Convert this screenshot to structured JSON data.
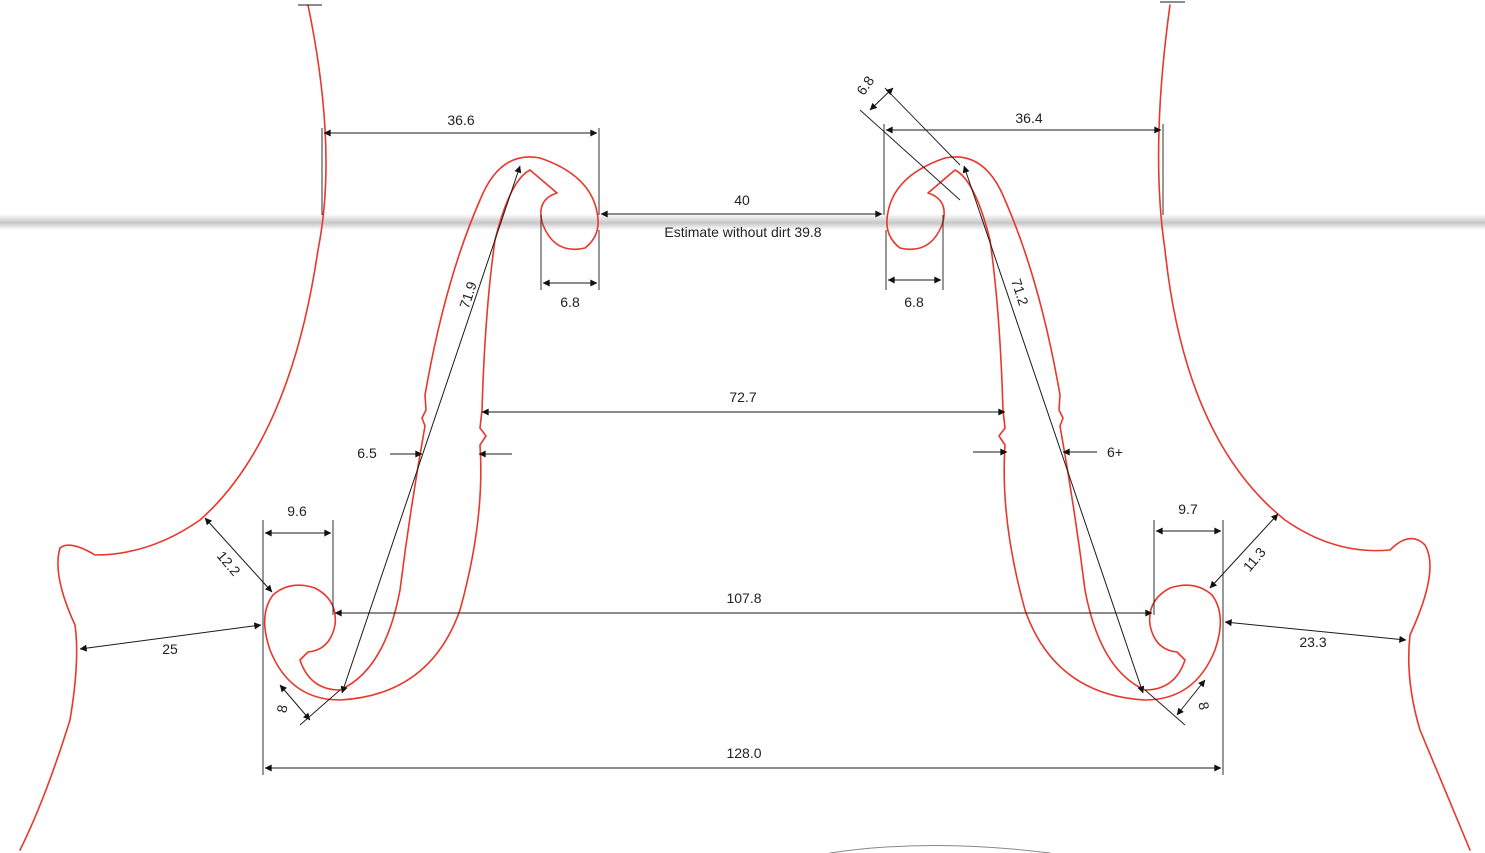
{
  "labels": {
    "top_left_width": "36.6",
    "top_right_width": "36.4",
    "diag_top_right_small": "6.8",
    "eye_gap": "40",
    "eye_gap_note": "Estimate without dirt 39.8",
    "left_eye_width": "6.8",
    "right_eye_width": "6.8",
    "left_diagonal": "71.9",
    "right_diagonal": "71.2",
    "mid_gap": "72.7",
    "left_notch": "6.5",
    "right_notch": "6+",
    "left_lower_eye": "9.6",
    "right_lower_eye": "9.7",
    "left_edge_dist": "12.2",
    "right_edge_dist": "11.3",
    "lower_eye_gap": "107.8",
    "left_outer": "25",
    "right_outer": "23.3",
    "left_wing": "8",
    "right_wing": "8",
    "overall_width": "128.0"
  },
  "colors": {
    "outline": "#e8372c",
    "dimension": "#1a1a1a",
    "paper": "#ffffff"
  }
}
